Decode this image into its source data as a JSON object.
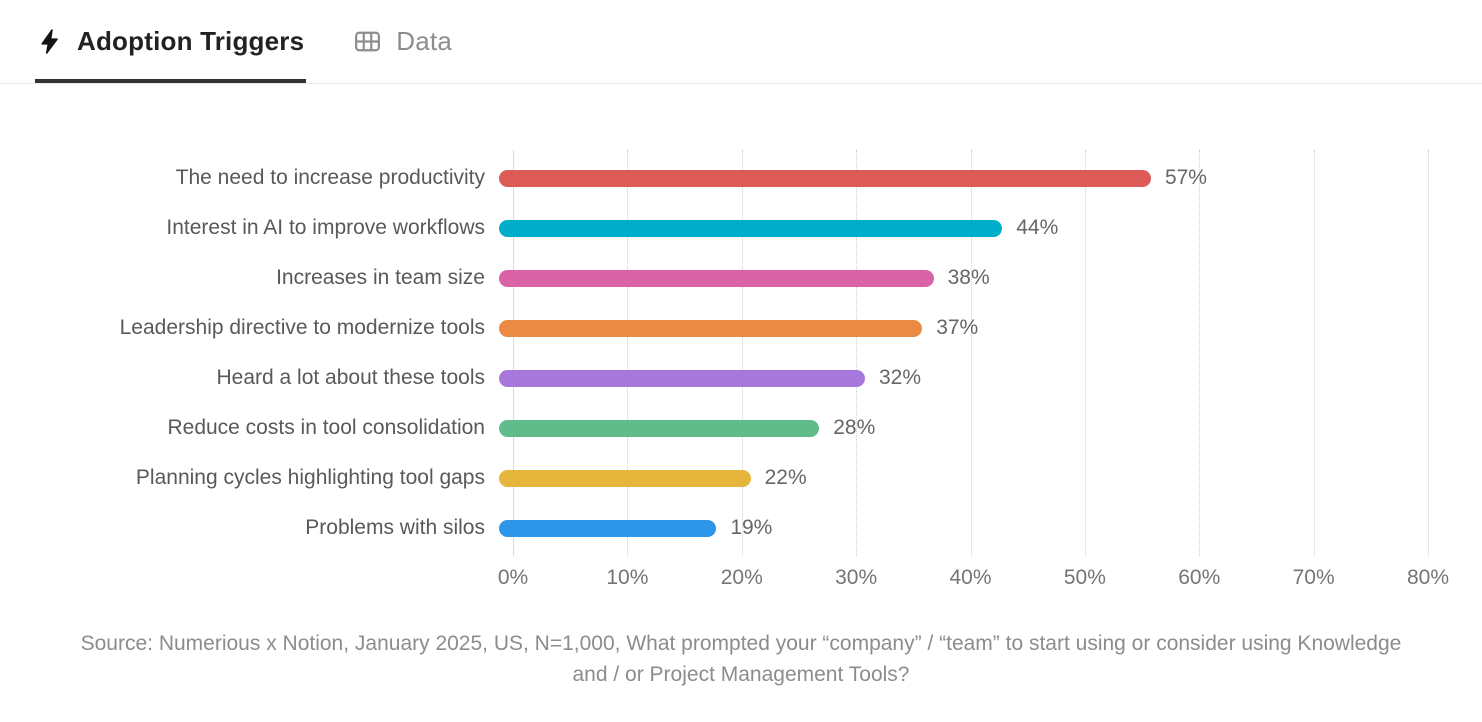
{
  "tabs": [
    {
      "label": "Adoption Triggers",
      "icon": "lightning-icon",
      "active": true
    },
    {
      "label": "Data",
      "icon": "table-icon",
      "active": false
    }
  ],
  "chart_data": {
    "type": "bar",
    "orientation": "horizontal",
    "title": "",
    "xlabel": "",
    "ylabel": "",
    "categories": [
      "The need to increase productivity",
      "Interest in AI to improve workflows",
      "Increases in team size",
      "Leadership directive to modernize tools",
      "Heard a lot about these tools",
      "Reduce costs in tool consolidation",
      "Planning cycles highlighting tool gaps",
      "Problems with silos"
    ],
    "values": [
      57,
      44,
      38,
      37,
      32,
      28,
      22,
      19
    ],
    "value_labels": [
      "57%",
      "44%",
      "38%",
      "37%",
      "32%",
      "28%",
      "22%",
      "19%"
    ],
    "bar_colors": [
      "#DC5B56",
      "#00AECB",
      "#D963A6",
      "#EB8A43",
      "#A678DB",
      "#60BC8B",
      "#E6B63C",
      "#2E96E8"
    ],
    "xlim": [
      0,
      80
    ],
    "x_ticks": [
      "0%",
      "10%",
      "20%",
      "30%",
      "40%",
      "50%",
      "60%",
      "70%",
      "80%"
    ],
    "grid": "vertical-dotted",
    "legend": "none"
  },
  "colors": {
    "active_tab_underline": "#333333",
    "inactive_tab_text": "#8d8d8d",
    "grid_color": "#cfcfcf",
    "axis_color": "#dadada",
    "label_color": "#595959",
    "value_color": "#666666",
    "tick_color": "#757575",
    "source_color": "#8c8c8c"
  },
  "source_text": "Source: Numerious x Notion, January 2025, US, N=1,000, What prompted your “company” / “team” to start using or consider using Knowledge and / or Project Management Tools?"
}
